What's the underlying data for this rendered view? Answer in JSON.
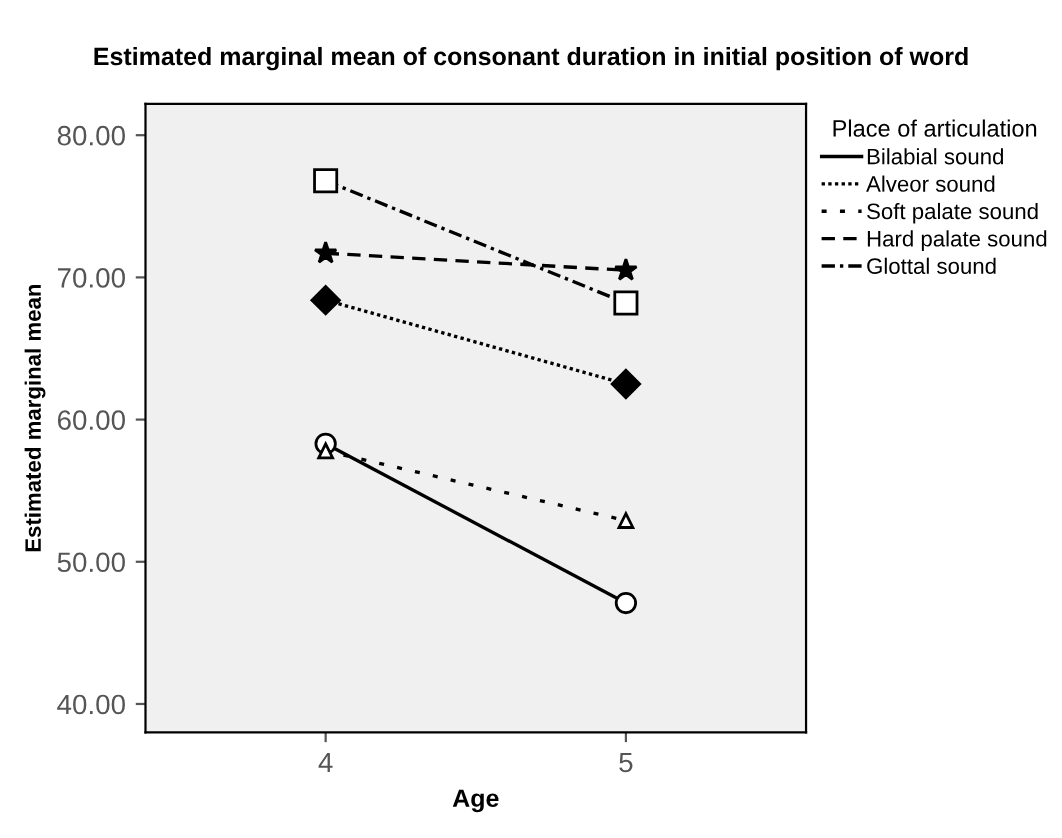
{
  "chart_data": {
    "type": "line",
    "title": "Estimated marginal mean of consonant duration in initial position of word",
    "xlabel": "Age",
    "ylabel": "Estimated marginal mean",
    "legend_title": "Place of articulation",
    "x": [
      4,
      5
    ],
    "xlim": [
      3.4,
      5.6
    ],
    "xticks": [
      4,
      5
    ],
    "ylim": [
      38.0,
      82.2
    ],
    "yticks": [
      {
        "value": 40,
        "label": "40.00"
      },
      {
        "value": 50,
        "label": "50.00"
      },
      {
        "value": 60,
        "label": "60.00"
      },
      {
        "value": 70,
        "label": "70.00"
      },
      {
        "value": 80,
        "label": "80.00"
      }
    ],
    "grid": false,
    "legend": "top right",
    "series": [
      {
        "name": "Bilabial sound",
        "color": "#000000",
        "values": [
          58.3,
          47.1
        ],
        "line_style": "solid",
        "marker": "circle"
      },
      {
        "name": "Alveor sound",
        "color": "#000000",
        "values": [
          68.4,
          62.5
        ],
        "line_style": "dotted",
        "marker": "diamond"
      },
      {
        "name": "Soft palate sound",
        "color": "#000000",
        "values": [
          57.8,
          52.9
        ],
        "line_style": "sparse dotted",
        "marker": "triangle"
      },
      {
        "name": "Hard palate sound",
        "color": "#000000",
        "values": [
          71.7,
          70.5
        ],
        "line_style": "dashed",
        "marker": "star"
      },
      {
        "name": "Glottal sound",
        "color": "#000000",
        "values": [
          76.8,
          68.2
        ],
        "line_style": "dashdot",
        "marker": "square"
      }
    ]
  }
}
